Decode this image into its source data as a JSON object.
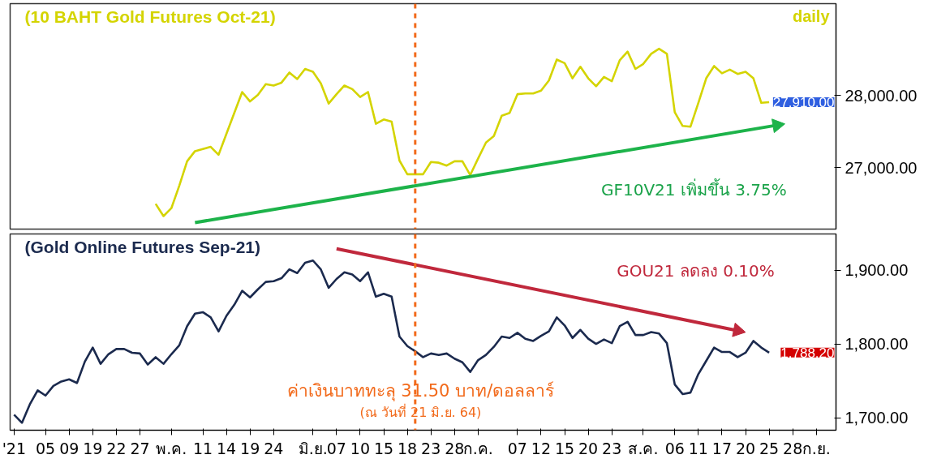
{
  "chart_data": [
    {
      "type": "line",
      "title": "(10 BAHT Gold Futures Oct-21)",
      "subtitle": "daily",
      "ylim": [
        26150,
        29275
      ],
      "yticks": [
        {
          "value": 27000,
          "label": "27,000.00"
        },
        {
          "value": 28000,
          "label": "28,000.00"
        }
      ],
      "tick_labels": "y",
      "categories": [
        null,
        null,
        null,
        null,
        null,
        null,
        null,
        null,
        null,
        null,
        null,
        null,
        null,
        null,
        null,
        null,
        null,
        null,
        null,
        null,
        null,
        null,
        null,
        null,
        null,
        null,
        null,
        null,
        null,
        null,
        null,
        null,
        null,
        null,
        null,
        null,
        null,
        null,
        null,
        null,
        null,
        null,
        null,
        null,
        null,
        null,
        null,
        null,
        null,
        null,
        null,
        null,
        null,
        null,
        null,
        null,
        null,
        null,
        null,
        null,
        null,
        null,
        null,
        null,
        null,
        null,
        null,
        null,
        null,
        null,
        null,
        null,
        null,
        null,
        null,
        null,
        null,
        null,
        null,
        null,
        null,
        null,
        null,
        null,
        null,
        null,
        null,
        null,
        null,
        null,
        null,
        null,
        null,
        null,
        null,
        null,
        null,
        null,
        null,
        null,
        null,
        null,
        null,
        null,
        null
      ],
      "series": [
        {
          "color": "#d4d400",
          "values": [
            null,
            null,
            null,
            null,
            null,
            null,
            null,
            null,
            null,
            null,
            null,
            null,
            null,
            null,
            null,
            null,
            null,
            null,
            26500,
            26330,
            26440,
            26750,
            27090,
            27230,
            27260,
            27290,
            27180,
            27470,
            27760,
            28050,
            27920,
            28010,
            28160,
            28140,
            28180,
            28320,
            28230,
            28370,
            28330,
            28170,
            27890,
            28020,
            28140,
            28090,
            27980,
            28050,
            27610,
            27670,
            27640,
            27100,
            26910,
            26910,
            26910,
            27080,
            27070,
            27030,
            27090,
            27090,
            26900,
            27130,
            27350,
            27440,
            27720,
            27760,
            28020,
            28030,
            28030,
            28070,
            28210,
            28500,
            28450,
            28240,
            28400,
            28240,
            28130,
            28260,
            28200,
            28490,
            28610,
            28370,
            28440,
            28580,
            28650,
            28580,
            27770,
            27580,
            27570,
            27900,
            28240,
            28410,
            28310,
            28360,
            28300,
            28330,
            28240,
            27900,
            27910,
            null,
            null,
            null,
            null,
            null,
            null,
            null,
            null
          ],
          "value_labels": [
            null,
            null,
            null,
            null,
            null,
            null,
            null,
            null,
            null,
            null,
            null,
            null,
            null,
            null,
            null,
            null,
            null,
            null,
            null,
            null,
            null,
            null,
            null,
            null,
            null,
            null,
            null,
            null,
            null,
            null,
            null,
            null,
            null,
            null,
            null,
            null,
            null,
            null,
            null,
            null,
            null,
            null,
            null,
            null,
            null,
            null,
            null,
            null,
            null,
            null,
            null,
            null,
            null,
            null,
            null,
            null,
            null,
            null,
            null,
            null,
            null,
            null,
            null,
            null,
            null,
            null,
            null,
            null,
            null,
            null,
            null,
            null,
            null,
            null,
            null,
            null,
            null,
            null,
            null,
            null,
            null,
            null,
            null,
            null,
            null,
            null,
            null,
            null,
            null,
            null,
            null,
            null,
            null,
            null,
            null,
            null,
            "27,910.00",
            null,
            null,
            null,
            null,
            null,
            null,
            null,
            null
          ]
        },
        {
          "type": "line",
          "color": "#1db34a",
          "values": [
            null,
            null,
            null,
            null,
            null,
            null,
            null,
            null,
            null,
            null,
            null,
            null,
            null,
            null,
            null,
            null,
            null,
            null,
            null,
            null,
            null,
            null,
            null,
            26240,
            null,
            null,
            null,
            null,
            null,
            null,
            null,
            null,
            null,
            null,
            null,
            null,
            null,
            null,
            null,
            null,
            null,
            null,
            null,
            null,
            null,
            null,
            null,
            null,
            null,
            null,
            null,
            null,
            null,
            null,
            null,
            null,
            null,
            null,
            null,
            null,
            null,
            null,
            null,
            null,
            null,
            null,
            null,
            null,
            null,
            null,
            null,
            null,
            null,
            null,
            null,
            null,
            null,
            null,
            null,
            null,
            null,
            null,
            null,
            null,
            null,
            null,
            null,
            null,
            null,
            null,
            null,
            null,
            null,
            null,
            null,
            null,
            null,
            27590,
            null,
            null,
            null,
            null,
            null,
            null,
            null
          ]
        }
      ],
      "annotations": [
        "GF10V21 เพิ่มขึ้น 3.75%"
      ]
    },
    {
      "type": "line",
      "title": "(Gold Online Futures Sep-21)",
      "ylim": [
        1683,
        1949
      ],
      "categories": [
        "'21",
        null,
        null,
        null,
        "05",
        null,
        null,
        "09",
        null,
        null,
        "19",
        null,
        null,
        "22",
        null,
        null,
        "27",
        null,
        null,
        null,
        "พ.ค.",
        null,
        null,
        null,
        "11",
        null,
        null,
        "14",
        null,
        null,
        "19",
        null,
        null,
        "24",
        null,
        null,
        null,
        null,
        "มิ.ย.",
        null,
        null,
        "07",
        null,
        null,
        "10",
        null,
        null,
        "15",
        null,
        null,
        "18",
        null,
        null,
        "23",
        null,
        null,
        "28",
        null,
        null,
        "ก.ค.",
        null,
        null,
        null,
        null,
        "07",
        null,
        null,
        "12",
        null,
        null,
        "15",
        null,
        null,
        "20",
        null,
        null,
        "23",
        null,
        null,
        null,
        "ส.ค.",
        null,
        null,
        null,
        "06",
        null,
        null,
        "11",
        null,
        null,
        "17",
        null,
        null,
        "20",
        null,
        null,
        "25",
        null,
        null,
        "28",
        null,
        null,
        "ก.ย.",
        null,
        null
      ],
      "yticks": [
        {
          "value": 1700,
          "label": "1,700.00"
        },
        {
          "value": 1800,
          "label": "1,800.00"
        },
        {
          "value": 1900,
          "label": "1,900.00"
        }
      ],
      "series": [
        {
          "color": "#1b2a4e",
          "values": [
            1704,
            1693,
            1718,
            1737,
            1730,
            1743,
            1749,
            1752,
            1747,
            1776,
            1795,
            1773,
            1786,
            1793,
            1793,
            1788,
            1787,
            1772,
            1782,
            1773,
            1786,
            1798,
            1824,
            1841,
            1843,
            1836,
            1817,
            1838,
            1853,
            1872,
            1863,
            1874,
            1884,
            1885,
            1889,
            1901,
            1896,
            1910,
            1913,
            1901,
            1876,
            1888,
            1897,
            1894,
            1885,
            1897,
            1864,
            1868,
            1864,
            1810,
            1797,
            1790,
            1782,
            1787,
            1785,
            1787,
            1780,
            1775,
            1762,
            1778,
            1785,
            1796,
            1810,
            1808,
            1815,
            1807,
            1804,
            1811,
            1817,
            1836,
            1825,
            1808,
            1819,
            1807,
            1800,
            1806,
            1801,
            1824,
            1830,
            1812,
            1812,
            1816,
            1814,
            1801,
            1745,
            1732,
            1734,
            1759,
            1777,
            1795,
            1789,
            1789,
            1782,
            1788,
            1804,
            1795,
            1788.2,
            null,
            null,
            null,
            null,
            null,
            null,
            null,
            null
          ],
          "value_labels": [
            null,
            null,
            null,
            null,
            null,
            null,
            null,
            null,
            null,
            null,
            null,
            null,
            null,
            null,
            null,
            null,
            null,
            null,
            null,
            null,
            null,
            null,
            null,
            null,
            null,
            null,
            null,
            null,
            null,
            null,
            null,
            null,
            null,
            null,
            null,
            null,
            null,
            null,
            null,
            null,
            null,
            null,
            null,
            null,
            null,
            null,
            null,
            null,
            null,
            null,
            null,
            null,
            null,
            null,
            null,
            null,
            null,
            null,
            null,
            null,
            null,
            null,
            null,
            null,
            null,
            null,
            null,
            null,
            null,
            null,
            null,
            null,
            null,
            null,
            null,
            null,
            null,
            null,
            null,
            null,
            null,
            null,
            null,
            null,
            null,
            null,
            null,
            null,
            null,
            null,
            null,
            null,
            null,
            null,
            null,
            null,
            "1,788.20",
            null,
            null,
            null,
            null,
            null,
            null,
            null,
            null
          ]
        },
        {
          "type": "line",
          "color": "#c0283c",
          "values": [
            null,
            null,
            null,
            null,
            null,
            null,
            null,
            null,
            null,
            null,
            null,
            null,
            null,
            null,
            null,
            null,
            null,
            null,
            null,
            null,
            null,
            null,
            null,
            null,
            null,
            null,
            null,
            null,
            null,
            null,
            null,
            null,
            null,
            null,
            null,
            null,
            null,
            null,
            null,
            null,
            null,
            1929,
            null,
            null,
            null,
            null,
            null,
            null,
            null,
            null,
            null,
            null,
            null,
            null,
            null,
            null,
            null,
            null,
            null,
            null,
            null,
            null,
            null,
            null,
            null,
            null,
            null,
            null,
            null,
            null,
            null,
            null,
            null,
            null,
            null,
            null,
            null,
            null,
            null,
            null,
            null,
            null,
            null,
            null,
            null,
            null,
            null,
            null,
            null,
            null,
            null,
            null,
            1818,
            null,
            null,
            null,
            null,
            null,
            null,
            null,
            null,
            null,
            null,
            null,
            null
          ]
        }
      ],
      "annotations": [
        "GOU21 ลดลง 0.10%",
        "ค่าเงินบาททะลุ 31.50 บาท/ดอลลาร์",
        "(ณ วันที่ 21 มิ.ย. 64)"
      ]
    }
  ]
}
